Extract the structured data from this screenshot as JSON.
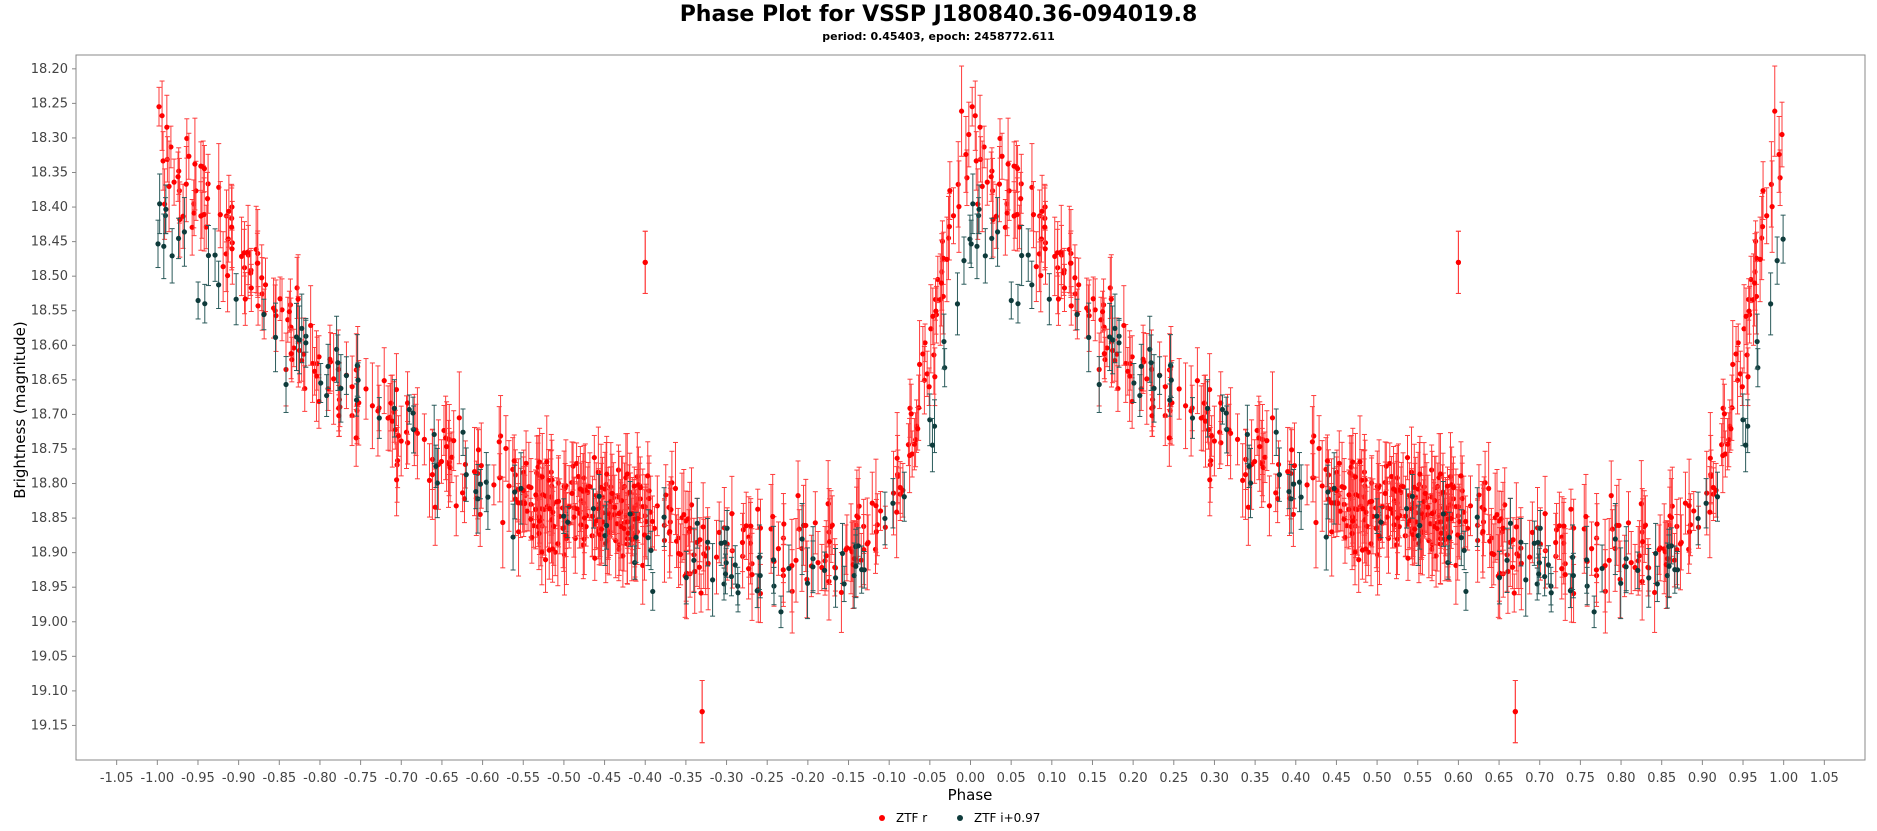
{
  "chart_data": {
    "type": "scatter",
    "title": "Phase Plot for VSSP J180840.36-094019.8",
    "subtitle": "period: 0.45403, epoch: 2458772.611",
    "xlabel": "Phase",
    "ylabel": "Brightness (magnitude)",
    "xlim": [
      -1.1,
      1.1
    ],
    "ylim": [
      19.2,
      18.18
    ],
    "y_inverted": true,
    "x_ticks": [
      "-1.05",
      "-1.00",
      "-0.95",
      "-0.90",
      "-0.85",
      "-0.80",
      "-0.75",
      "-0.70",
      "-0.65",
      "-0.60",
      "-0.55",
      "-0.50",
      "-0.45",
      "-0.40",
      "-0.35",
      "-0.30",
      "-0.25",
      "-0.20",
      "-0.15",
      "-0.10",
      "-0.05",
      "0.00",
      "0.05",
      "0.10",
      "0.15",
      "0.20",
      "0.25",
      "0.30",
      "0.35",
      "0.40",
      "0.45",
      "0.50",
      "0.55",
      "0.60",
      "0.65",
      "0.70",
      "0.75",
      "0.80",
      "0.85",
      "0.90",
      "0.95",
      "1.00",
      "1.05"
    ],
    "y_ticks": [
      "18.20",
      "18.25",
      "18.30",
      "18.35",
      "18.40",
      "18.45",
      "18.50",
      "18.55",
      "18.60",
      "18.65",
      "18.70",
      "18.75",
      "18.80",
      "18.85",
      "18.90",
      "18.95",
      "19.00",
      "19.05",
      "19.10",
      "19.15"
    ],
    "grid": false,
    "legend_position": "bottom-center",
    "series": [
      {
        "name": "ZTF r",
        "color": "#ff0000",
        "error_bar_color": "#ff3b3b",
        "marker": "circle",
        "template_phase": [
          0.0,
          0.02,
          0.05,
          0.08,
          0.1,
          0.13,
          0.16,
          0.2,
          0.25,
          0.3,
          0.35,
          0.4,
          0.45,
          0.5,
          0.55,
          0.6,
          0.65,
          0.7,
          0.75,
          0.8,
          0.85,
          0.88,
          0.92,
          0.95,
          0.97,
          0.99,
          1.0
        ],
        "template_mag": [
          18.29,
          18.35,
          18.38,
          18.43,
          18.46,
          18.52,
          18.57,
          18.62,
          18.68,
          18.72,
          18.76,
          18.79,
          18.82,
          18.83,
          18.84,
          18.85,
          18.87,
          18.89,
          18.89,
          18.9,
          18.91,
          18.86,
          18.78,
          18.62,
          18.45,
          18.3,
          18.28
        ],
        "scatter_mag": 0.07,
        "typical_error": 0.045,
        "n_points": 520,
        "outliers": [
          {
            "x": -0.4,
            "y": 18.48
          },
          {
            "x": 0.6,
            "y": 18.48
          },
          {
            "x": -0.33,
            "y": 19.13
          },
          {
            "x": 0.67,
            "y": 19.13
          }
        ]
      },
      {
        "name": "ZTF i+0.97",
        "color": "#0e3b3b",
        "error_bar_color": "#2a5a5a",
        "marker": "circle",
        "template_phase": [
          0.0,
          0.02,
          0.05,
          0.08,
          0.1,
          0.15,
          0.2,
          0.25,
          0.3,
          0.35,
          0.4,
          0.45,
          0.5,
          0.55,
          0.6,
          0.65,
          0.7,
          0.75,
          0.8,
          0.85,
          0.9,
          0.95,
          0.98,
          1.0
        ],
        "template_mag": [
          18.41,
          18.46,
          18.5,
          18.53,
          18.56,
          18.6,
          18.63,
          18.67,
          18.71,
          18.76,
          18.8,
          18.84,
          18.86,
          18.87,
          18.88,
          18.9,
          18.92,
          18.93,
          18.93,
          18.92,
          18.88,
          18.74,
          18.55,
          18.42
        ],
        "scatter_mag": 0.05,
        "typical_error": 0.035,
        "n_points": 110
      }
    ]
  }
}
